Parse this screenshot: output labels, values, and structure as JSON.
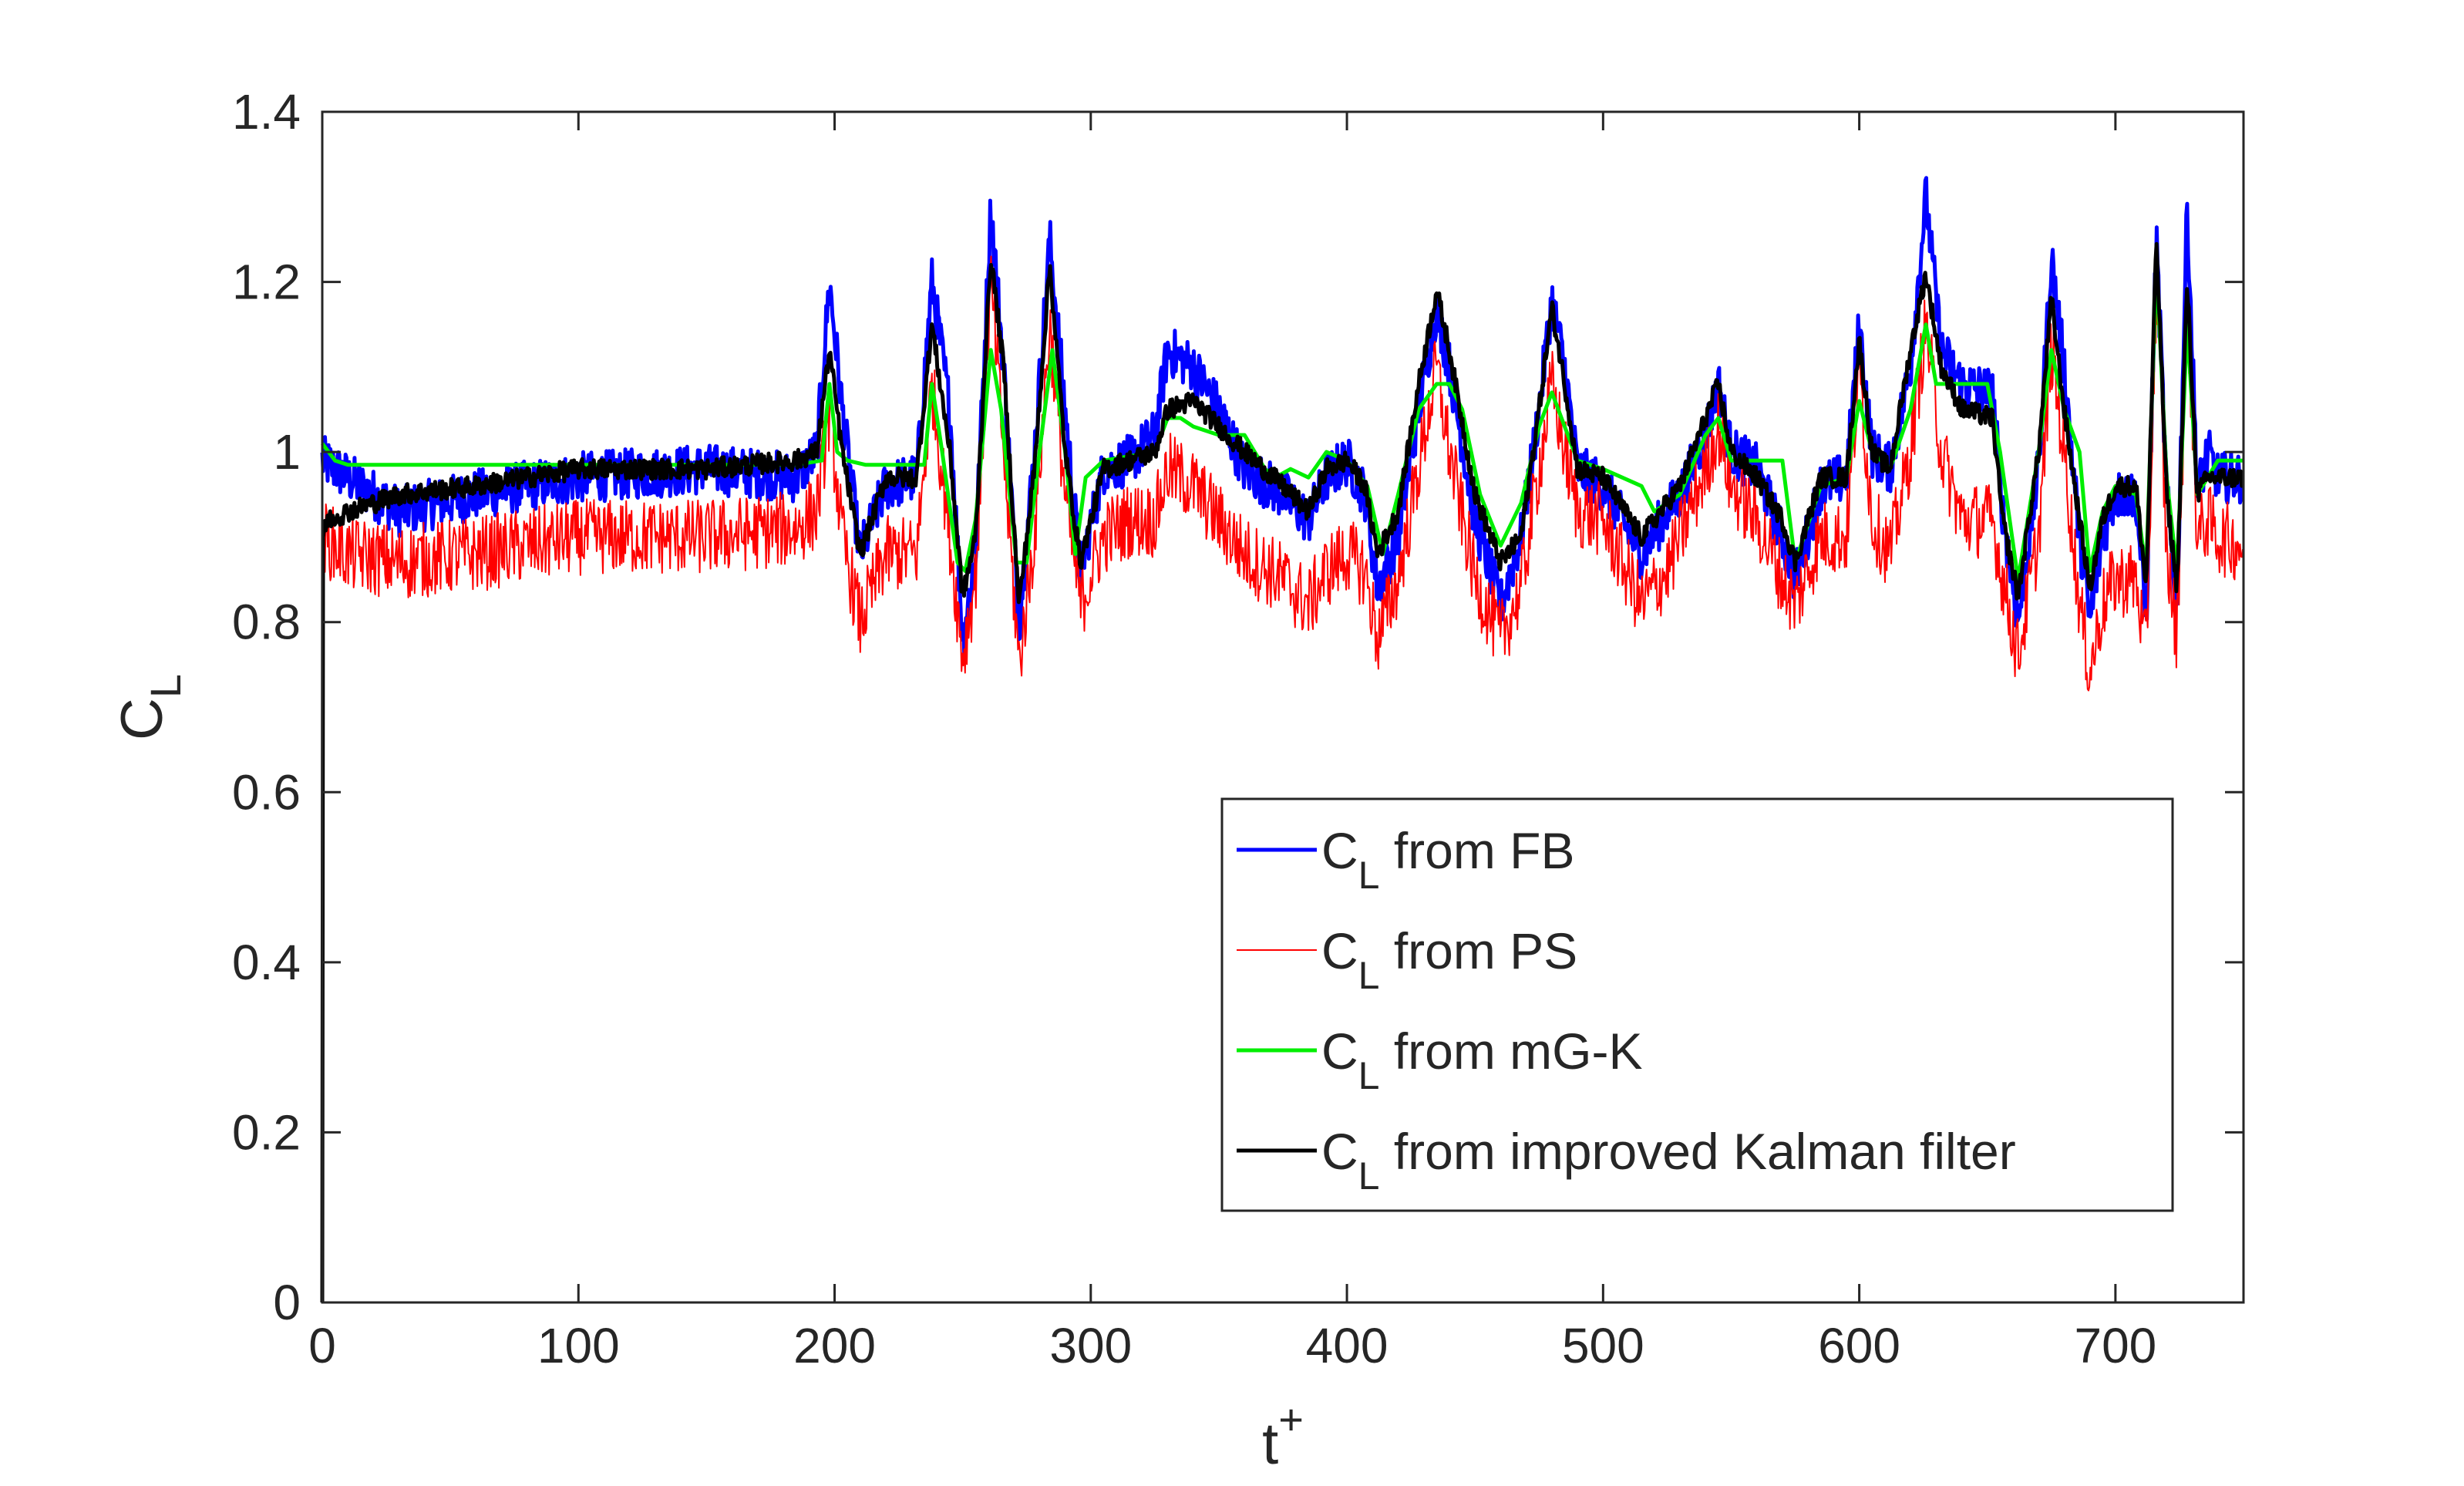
{
  "chart_data": {
    "type": "line",
    "xlabel": {
      "main": "t",
      "superscript": "+"
    },
    "ylabel": {
      "main": "C",
      "subscript": "L"
    },
    "xlim": [
      0,
      750
    ],
    "ylim": [
      0,
      1.4
    ],
    "x_ticks": [
      0,
      100,
      200,
      300,
      400,
      500,
      600,
      700
    ],
    "y_ticks": [
      0,
      0.2,
      0.4,
      0.6,
      0.8,
      1,
      1.2,
      1.4
    ],
    "x_tick_labels": [
      "0",
      "100",
      "200",
      "300",
      "400",
      "500",
      "600",
      "700"
    ],
    "y_tick_labels": [
      "0",
      "0.2",
      "0.4",
      "0.6",
      "0.8",
      "1",
      "1.2",
      "1.4"
    ],
    "grid": false,
    "legend_position": "bottom-right",
    "series": [
      {
        "name": "C_L from FB",
        "label_main": "C",
        "label_sub": "L",
        "label_rest": " from FB",
        "color": "#0000ff",
        "noise": 0.03,
        "x": [
          0,
          10,
          30,
          60,
          100,
          150,
          185,
          193,
          198,
          203,
          210,
          220,
          232,
          238,
          245,
          250,
          255,
          261,
          266,
          272,
          278,
          284,
          290,
          296,
          305,
          315,
          325,
          330,
          340,
          350,
          360,
          375,
          385,
          392,
          400,
          407,
          412,
          420,
          428,
          435,
          440,
          450,
          460,
          468,
          475,
          480,
          485,
          490,
          500,
          515,
          525,
          530,
          540,
          545,
          550,
          560,
          570,
          575,
          585,
          595,
          600,
          605,
          612,
          620,
          626,
          632,
          640,
          652,
          656,
          662,
          670,
          675,
          680,
          686,
          690,
          695,
          700,
          708,
          712,
          716,
          720,
          724,
          728,
          732,
          736,
          740,
          750
        ],
        "y": [
          0.99,
          0.97,
          0.93,
          0.95,
          0.97,
          0.98,
          0.97,
          1.0,
          1.2,
          1.05,
          0.88,
          0.96,
          0.97,
          1.2,
          1.05,
          0.78,
          0.88,
          1.29,
          1.1,
          0.8,
          1.0,
          1.25,
          1.05,
          0.86,
          0.98,
          0.99,
          1.02,
          1.12,
          1.1,
          1.05,
          0.98,
          0.95,
          0.92,
          0.97,
          0.99,
          0.95,
          0.84,
          0.9,
          1.05,
          1.17,
          1.1,
          0.92,
          0.82,
          0.9,
          1.05,
          1.18,
          1.1,
          0.98,
          0.96,
          0.88,
          0.93,
          0.95,
          1.02,
          1.08,
          1.0,
          0.98,
          0.9,
          0.85,
          0.96,
          0.97,
          1.15,
          1.0,
          0.98,
          1.1,
          1.3,
          1.12,
          1.08,
          1.07,
          0.93,
          0.8,
          0.98,
          1.23,
          1.1,
          0.9,
          0.8,
          0.9,
          0.95,
          0.95,
          0.8,
          1.25,
          0.95,
          0.82,
          1.29,
          0.95,
          1.0,
          0.97,
          0.97
        ]
      },
      {
        "name": "C_L from PS",
        "label_main": "C",
        "label_sub": "L",
        "label_rest": " from PS",
        "color": "#ff0000",
        "noise": 0.045,
        "x": [
          0,
          10,
          30,
          60,
          100,
          150,
          185,
          193,
          198,
          203,
          210,
          220,
          232,
          238,
          245,
          250,
          255,
          261,
          266,
          272,
          278,
          284,
          290,
          296,
          305,
          315,
          325,
          330,
          340,
          350,
          360,
          375,
          385,
          392,
          400,
          407,
          412,
          420,
          428,
          435,
          440,
          450,
          460,
          468,
          475,
          480,
          485,
          490,
          500,
          515,
          525,
          530,
          540,
          545,
          550,
          560,
          570,
          575,
          585,
          595,
          600,
          605,
          612,
          620,
          626,
          632,
          640,
          652,
          656,
          662,
          670,
          675,
          680,
          686,
          690,
          695,
          700,
          708,
          712,
          716,
          720,
          724,
          728,
          732,
          736,
          740,
          750
        ],
        "y": [
          0.9,
          0.88,
          0.87,
          0.88,
          0.9,
          0.9,
          0.91,
          0.93,
          1.05,
          0.9,
          0.8,
          0.88,
          0.88,
          1.08,
          0.9,
          0.76,
          0.85,
          1.2,
          1.0,
          0.75,
          0.9,
          1.15,
          0.95,
          0.82,
          0.9,
          0.92,
          0.92,
          0.98,
          0.96,
          0.92,
          0.88,
          0.85,
          0.82,
          0.86,
          0.88,
          0.86,
          0.78,
          0.85,
          0.98,
          1.1,
          1.0,
          0.85,
          0.78,
          0.84,
          0.98,
          1.08,
          1.0,
          0.93,
          0.92,
          0.82,
          0.86,
          0.9,
          0.98,
          1.03,
          0.96,
          0.92,
          0.85,
          0.82,
          0.9,
          0.9,
          1.1,
          0.92,
          0.88,
          1.0,
          1.15,
          1.0,
          0.92,
          0.92,
          0.85,
          0.76,
          0.9,
          1.12,
          1.0,
          0.82,
          0.74,
          0.82,
          0.85,
          0.85,
          0.76,
          1.2,
          0.88,
          0.78,
          1.18,
          0.9,
          0.92,
          0.9,
          0.89
        ]
      },
      {
        "name": "C_L from mG-K",
        "label_main": "C",
        "label_sub": "L",
        "label_rest": " from mG-K",
        "color": "#00ee00",
        "noise": 0,
        "x": [
          0,
          5,
          10,
          100,
          185,
          195,
          198,
          201,
          205,
          212,
          235,
          238,
          242,
          248,
          251,
          255,
          261,
          265,
          271,
          275,
          280,
          285,
          290,
          294,
          298,
          305,
          325,
          330,
          335,
          340,
          350,
          360,
          368,
          372,
          378,
          385,
          392,
          400,
          408,
          414,
          420,
          428,
          435,
          440,
          445,
          452,
          460,
          468,
          475,
          480,
          485,
          490,
          500,
          515,
          520,
          530,
          540,
          545,
          550,
          560,
          570,
          575,
          585,
          595,
          600,
          605,
          612,
          620,
          626,
          630,
          640,
          650,
          655,
          662,
          670,
          675,
          680,
          686,
          690,
          695,
          700,
          708,
          712,
          716,
          720,
          724,
          728,
          732,
          736,
          740,
          750
        ],
        "y": [
          1.01,
          0.99,
          0.985,
          0.985,
          0.985,
          0.99,
          1.08,
          1.0,
          0.99,
          0.985,
          0.985,
          1.08,
          1.0,
          0.87,
          0.86,
          0.92,
          1.12,
          1.05,
          0.87,
          0.87,
          1.0,
          1.12,
          1.0,
          0.88,
          0.97,
          0.99,
          1.0,
          1.04,
          1.04,
          1.03,
          1.02,
          1.02,
          0.98,
          0.97,
          0.98,
          0.97,
          1.0,
          0.99,
          0.96,
          0.88,
          0.95,
          1.05,
          1.08,
          1.08,
          1.05,
          0.95,
          0.89,
          0.94,
          1.03,
          1.07,
          1.03,
          0.99,
          0.98,
          0.96,
          0.93,
          0.95,
          1.02,
          1.04,
          0.99,
          0.99,
          0.99,
          0.87,
          0.96,
          0.97,
          1.06,
          1.0,
          0.98,
          1.05,
          1.15,
          1.08,
          1.08,
          1.08,
          1.0,
          0.85,
          1.0,
          1.12,
          1.05,
          1.0,
          0.86,
          0.93,
          0.96,
          0.95,
          0.86,
          1.22,
          0.97,
          0.86,
          1.15,
          0.95,
          0.97,
          0.99,
          0.99
        ]
      },
      {
        "name": "C_L from improved Kalman filter",
        "label_main": "C",
        "label_sub": "L",
        "label_rest": " from improved Kalman filter",
        "color": "#000000",
        "noise": 0.012,
        "x": [
          0,
          0.3,
          2,
          10,
          30,
          60,
          100,
          150,
          185,
          193,
          198,
          203,
          210,
          220,
          232,
          238,
          245,
          250,
          255,
          261,
          266,
          272,
          278,
          284,
          290,
          296,
          305,
          315,
          325,
          330,
          340,
          350,
          360,
          375,
          385,
          392,
          400,
          407,
          412,
          420,
          428,
          435,
          440,
          450,
          460,
          468,
          475,
          480,
          485,
          490,
          500,
          515,
          525,
          530,
          540,
          545,
          550,
          560,
          570,
          575,
          585,
          595,
          600,
          605,
          612,
          620,
          626,
          632,
          640,
          652,
          656,
          662,
          670,
          675,
          680,
          686,
          690,
          695,
          700,
          708,
          712,
          716,
          720,
          724,
          728,
          732,
          736,
          740,
          750
        ],
        "y": [
          0,
          0.9,
          0.92,
          0.93,
          0.95,
          0.96,
          0.98,
          0.98,
          0.99,
          1.0,
          1.12,
          1.0,
          0.88,
          0.97,
          0.97,
          1.15,
          1.0,
          0.83,
          0.9,
          1.23,
          1.1,
          0.82,
          0.98,
          1.22,
          1.0,
          0.87,
          0.98,
          0.99,
          1.0,
          1.05,
          1.06,
          1.03,
          1.0,
          0.96,
          0.93,
          0.98,
          0.99,
          0.96,
          0.88,
          0.93,
          1.08,
          1.19,
          1.12,
          0.95,
          0.87,
          0.9,
          1.05,
          1.17,
          1.08,
          0.98,
          0.97,
          0.9,
          0.94,
          0.96,
          1.04,
          1.08,
          1.0,
          0.97,
          0.92,
          0.87,
          0.97,
          0.97,
          1.13,
          1.0,
          0.98,
          1.12,
          1.21,
          1.1,
          1.05,
          1.04,
          0.92,
          0.83,
          1.0,
          1.18,
          1.05,
          0.92,
          0.84,
          0.92,
          0.96,
          0.96,
          0.84,
          1.25,
          0.95,
          0.84,
          1.2,
          0.95,
          0.97,
          0.97,
          0.97
        ]
      }
    ]
  }
}
